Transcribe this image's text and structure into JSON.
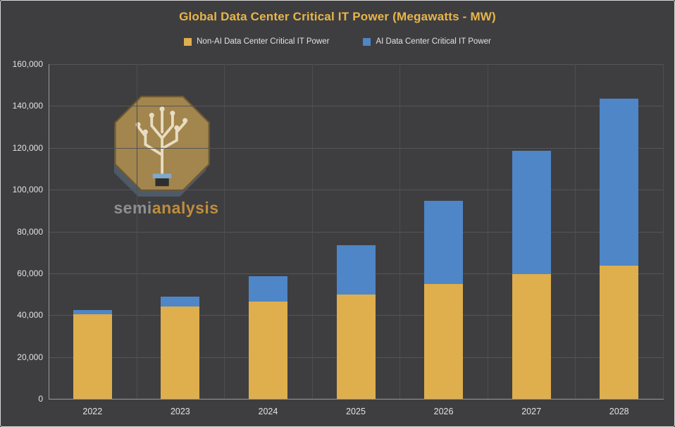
{
  "chart_data": {
    "type": "bar",
    "stacked": true,
    "title": "Global Data Center Critical IT Power (Megawatts - MW)",
    "categories": [
      "2022",
      "2023",
      "2024",
      "2025",
      "2026",
      "2027",
      "2028"
    ],
    "series": [
      {
        "name": "Non-AI Data Center Critical IT Power",
        "color": "#DFAE4D",
        "values": [
          40500,
          44000,
          46500,
          50000,
          55000,
          59500,
          63500
        ]
      },
      {
        "name": "AI Data Center Critical IT Power",
        "color": "#4E86C8",
        "values": [
          2000,
          5000,
          12000,
          23500,
          39500,
          59000,
          80000
        ]
      }
    ],
    "ylim": [
      0,
      160000
    ],
    "ytick_step": 20000,
    "ytick_labels": [
      "0",
      "20,000",
      "40,000",
      "60,000",
      "80,000",
      "100,000",
      "120,000",
      "140,000",
      "160,000"
    ],
    "grid": true,
    "legend_position": "top"
  },
  "watermark": {
    "prefix": "semi",
    "suffix": "analysis"
  },
  "colors": {
    "background": "#3E3E40",
    "title": "#E8B54A",
    "gridline": "#555557",
    "axis": "#9B9B9B",
    "tick_text": "#E3E3E3"
  }
}
